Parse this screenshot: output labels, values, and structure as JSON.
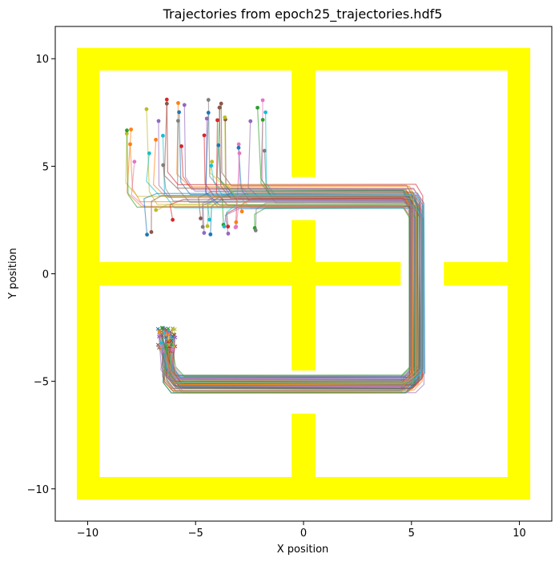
{
  "chart_data": {
    "type": "line",
    "title": "Trajectories from epoch25_trajectories.hdf5",
    "xlabel": "X position",
    "ylabel": "Y position",
    "xlim": [
      -11.5,
      11.5
    ],
    "ylim": [
      -11.5,
      11.5
    ],
    "xticks": [
      -10,
      -5,
      0,
      5,
      10
    ],
    "yticks": [
      -10,
      -5,
      0,
      5,
      10
    ],
    "xtick_labels": [
      "−10",
      "−5",
      "0",
      "5",
      "10"
    ],
    "ytick_labels": [
      "−10",
      "−5",
      "0",
      "5",
      "10"
    ],
    "grid": false,
    "legend": false,
    "walls": {
      "color": "#ffff00",
      "rects": [
        {
          "x0": -10.5,
          "x1": 10.5,
          "y0": 9.45,
          "y1": 10.5
        },
        {
          "x0": -10.5,
          "x1": 10.5,
          "y0": -10.5,
          "y1": -9.45
        },
        {
          "x0": -10.5,
          "x1": -9.45,
          "y0": -10.5,
          "y1": 10.5
        },
        {
          "x0": 9.45,
          "x1": 10.5,
          "y0": -10.5,
          "y1": 10.5
        },
        {
          "x0": -10.5,
          "x1": 4.5,
          "y0": -0.55,
          "y1": 0.55
        },
        {
          "x0": 6.5,
          "x1": 10.5,
          "y0": -0.55,
          "y1": 0.55
        },
        {
          "x0": -0.55,
          "x1": 0.55,
          "y0": 4.5,
          "y1": 10.5
        },
        {
          "x0": -0.55,
          "x1": 0.55,
          "y0": -4.5,
          "y1": 2.5
        },
        {
          "x0": -0.55,
          "x1": 0.55,
          "y0": -10.5,
          "y1": -6.5
        }
      ]
    },
    "series_colors": [
      "#1f77b4",
      "#ff7f0e",
      "#2ca02c",
      "#d62728",
      "#9467bd",
      "#8c564b",
      "#e377c2",
      "#7f7f7f",
      "#bcbd22",
      "#17becf"
    ],
    "trajectories": {
      "count": 60,
      "waypoints": [
        [
          -6.0,
          8.0
        ],
        [
          -6.0,
          3.5
        ],
        [
          5.2,
          3.5
        ],
        [
          5.2,
          -5.2
        ],
        [
          -6.2,
          -5.2
        ],
        [
          -6.4,
          -2.6
        ]
      ],
      "start_x_range": [
        -8.2,
        -1.7
      ],
      "start_y_upper": [
        5.0,
        8.2
      ],
      "start_y_lower": [
        1.8,
        3.0
      ],
      "end_region": {
        "x": [
          -6.8,
          -5.9
        ],
        "y": [
          -3.6,
          -2.5
        ]
      },
      "start_marker": "circle",
      "end_marker": "x"
    }
  }
}
